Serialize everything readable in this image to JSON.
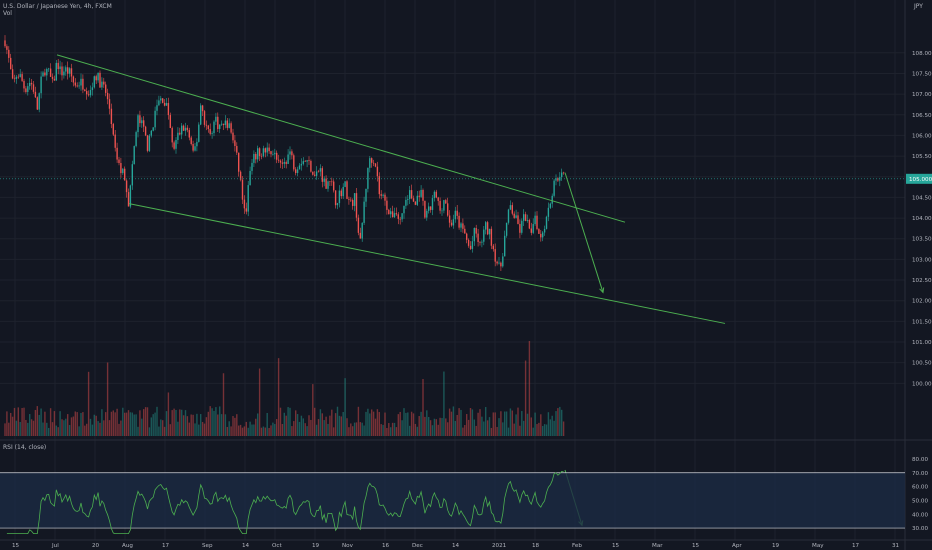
{
  "header": {
    "symbol_line": "U.S. Dollar / Japanese Yen, 4h, FXCM",
    "vol_label": "Vol",
    "currency": "JPY",
    "rsi_label": "RSI (14, close)"
  },
  "colors": {
    "background": "#131722",
    "up": "#26a69a",
    "down": "#ef5350",
    "trendline": "#4caf50",
    "rsi_line": "#4caf50",
    "rsi_band": "#1c2a44",
    "grid": "#1e222d"
  },
  "chart_data": [
    {
      "type": "candlestick",
      "title": "U.S. Dollar / Japanese Yen, 4h, FXCM",
      "ylim": [
        99.5,
        108.6
      ],
      "y_ticks": [
        100.0,
        100.5,
        101.0,
        101.5,
        102.0,
        102.5,
        103.0,
        103.5,
        104.0,
        104.5,
        105.0,
        105.5,
        106.0,
        106.5,
        107.0,
        107.5,
        108.0
      ],
      "y_tick_labels": [
        "100.000",
        "100.500",
        "101.000",
        "101.500",
        "102.000",
        "102.500",
        "103.000",
        "103.500",
        "104.000",
        "104.500",
        "105.000",
        "105.500",
        "106.000",
        "106.500",
        "107.000",
        "107.500",
        "108.000"
      ],
      "x_tick_labels": [
        "15",
        "Jul",
        "20",
        "Aug",
        "17",
        "Sep",
        "14",
        "Oct",
        "19",
        "Nov",
        "16",
        "Dec",
        "14",
        "2021",
        "18",
        "Feb",
        "15",
        "Mar",
        "15",
        "Apr",
        "19",
        "May",
        "17",
        "31"
      ],
      "x_tick_index": [
        1,
        5,
        9,
        12,
        16,
        20,
        24,
        27,
        31,
        34,
        38,
        41,
        45,
        49,
        53,
        57,
        61,
        65,
        69,
        73,
        77,
        81,
        85,
        89
      ],
      "price_label": "105.000",
      "last_price": 104.95,
      "price_path": [
        [
          0,
          108.3
        ],
        [
          0.4,
          107.8
        ],
        [
          0.8,
          107.2
        ],
        [
          1.2,
          107.5
        ],
        [
          1.6,
          107.4
        ],
        [
          2.0,
          107.1
        ],
        [
          2.4,
          107.3
        ],
        [
          2.8,
          107.2
        ],
        [
          3.2,
          106.6
        ],
        [
          3.6,
          107.3
        ],
        [
          4.0,
          107.6
        ],
        [
          4.4,
          107.5
        ],
        [
          4.8,
          107.2
        ],
        [
          5.2,
          107.8
        ],
        [
          5.6,
          107.5
        ],
        [
          6.0,
          107.6
        ],
        [
          6.5,
          107.5
        ],
        [
          7.0,
          107.2
        ],
        [
          7.5,
          107.3
        ],
        [
          8.0,
          107.2
        ],
        [
          8.5,
          107.0
        ],
        [
          9.0,
          107.5
        ],
        [
          9.5,
          107.3
        ],
        [
          10.0,
          107.1
        ],
        [
          10.5,
          106.6
        ],
        [
          11.0,
          105.6
        ],
        [
          11.5,
          105.2
        ],
        [
          12.0,
          105.0
        ],
        [
          12.4,
          104.3
        ],
        [
          12.8,
          105.5
        ],
        [
          13.3,
          106.4
        ],
        [
          13.8,
          106.2
        ],
        [
          14.3,
          105.7
        ],
        [
          14.8,
          106.3
        ],
        [
          15.3,
          106.8
        ],
        [
          15.8,
          106.9
        ],
        [
          16.3,
          106.6
        ],
        [
          16.8,
          105.6
        ],
        [
          17.3,
          106.0
        ],
        [
          17.8,
          106.2
        ],
        [
          18.3,
          106.1
        ],
        [
          18.8,
          105.5
        ],
        [
          19.2,
          105.9
        ],
        [
          19.6,
          106.8
        ],
        [
          20.0,
          106.3
        ],
        [
          20.5,
          106.0
        ],
        [
          21.0,
          106.4
        ],
        [
          21.5,
          106.2
        ],
        [
          22.0,
          106.3
        ],
        [
          22.5,
          106.2
        ],
        [
          23.0,
          105.7
        ],
        [
          23.5,
          105.0
        ],
        [
          24.0,
          104.0
        ],
        [
          24.5,
          105.1
        ],
        [
          25.0,
          105.5
        ],
        [
          25.5,
          105.6
        ],
        [
          26.0,
          105.6
        ],
        [
          26.5,
          105.7
        ],
        [
          27.0,
          105.5
        ],
        [
          27.5,
          105.2
        ],
        [
          28.0,
          105.4
        ],
        [
          28.5,
          105.6
        ],
        [
          29.0,
          105.2
        ],
        [
          29.5,
          105.4
        ],
        [
          30.0,
          105.4
        ],
        [
          30.5,
          105.3
        ],
        [
          31.0,
          105.0
        ],
        [
          31.5,
          105.2
        ],
        [
          32.0,
          104.8
        ],
        [
          32.5,
          105.0
        ],
        [
          33.0,
          104.4
        ],
        [
          33.5,
          104.6
        ],
        [
          34.0,
          104.8
        ],
        [
          34.5,
          104.3
        ],
        [
          35.0,
          104.5
        ],
        [
          35.5,
          103.3
        ],
        [
          36.0,
          104.6
        ],
        [
          36.5,
          105.5
        ],
        [
          37.0,
          105.4
        ],
        [
          37.5,
          104.5
        ],
        [
          38.0,
          104.5
        ],
        [
          38.5,
          104.0
        ],
        [
          39.0,
          104.2
        ],
        [
          39.5,
          103.9
        ],
        [
          40.0,
          104.4
        ],
        [
          40.5,
          104.6
        ],
        [
          41.0,
          104.3
        ],
        [
          41.5,
          104.7
        ],
        [
          42.0,
          104.0
        ],
        [
          42.5,
          104.2
        ],
        [
          43.0,
          104.6
        ],
        [
          43.5,
          104.2
        ],
        [
          44.0,
          104.5
        ],
        [
          44.5,
          103.8
        ],
        [
          45.0,
          104.1
        ],
        [
          45.5,
          103.8
        ],
        [
          46.0,
          103.6
        ],
        [
          46.5,
          103.2
        ],
        [
          47.0,
          103.7
        ],
        [
          47.5,
          103.3
        ],
        [
          48.0,
          103.8
        ],
        [
          48.5,
          103.6
        ],
        [
          49.0,
          103.1
        ],
        [
          49.5,
          102.7
        ],
        [
          50.0,
          103.6
        ],
        [
          50.5,
          104.3
        ],
        [
          51.0,
          104.0
        ],
        [
          51.5,
          103.7
        ],
        [
          52.0,
          104.1
        ],
        [
          52.5,
          103.6
        ],
        [
          53.0,
          104.1
        ],
        [
          53.5,
          103.5
        ],
        [
          54.0,
          103.9
        ],
        [
          54.5,
          104.4
        ],
        [
          55.0,
          104.9
        ],
        [
          55.5,
          105.1
        ],
        [
          56.0,
          104.95
        ]
      ]
    },
    {
      "type": "bar",
      "title": "Vol",
      "values": "4h volume histogram"
    },
    {
      "type": "line",
      "title": "RSI (14, close)",
      "ylim": [
        25,
        85
      ],
      "y_ticks": [
        30,
        40,
        50,
        60,
        70,
        80
      ],
      "y_tick_labels": [
        "30.00",
        "40.00",
        "50.00",
        "60.00",
        "70.00",
        "80.00"
      ],
      "band": [
        30,
        70
      ],
      "last_value": 75.0
    }
  ],
  "annotations": {
    "channel_upper": [
      [
        5.2,
        107.95
      ],
      [
        62.0,
        103.9
      ]
    ],
    "channel_lower": [
      [
        12.4,
        104.35
      ],
      [
        72.0,
        101.45
      ]
    ],
    "forecast_arrow": [
      [
        56.0,
        105.1
      ],
      [
        59.8,
        102.2
      ]
    ],
    "rsi_forecast_arrow": [
      [
        56.0,
        72
      ],
      [
        57.7,
        32
      ]
    ]
  }
}
